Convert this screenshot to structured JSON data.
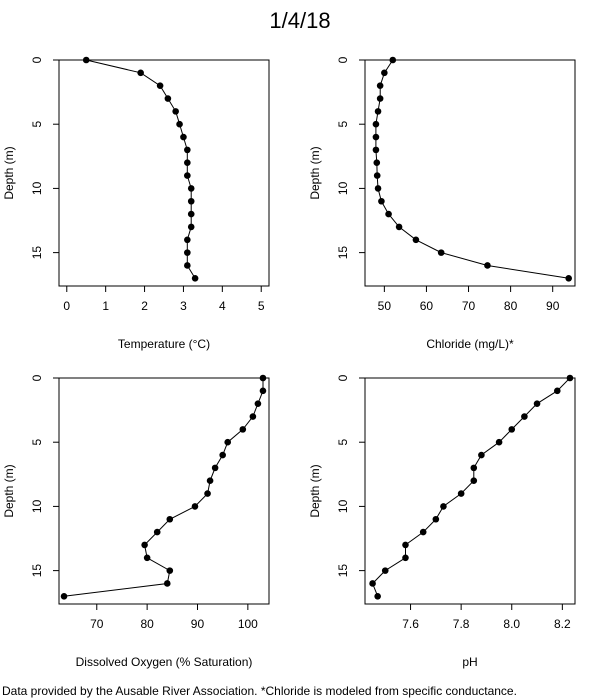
{
  "title": "1/4/18",
  "footnote": "Data provided by the Ausable River Association. *Chloride is modeled from specific conductance.",
  "colors": {
    "point": "#000000",
    "line": "#000000",
    "frame": "#000000",
    "background": "#ffffff"
  },
  "chart_data": [
    {
      "type": "line",
      "xlabel": "Temperature (°C)",
      "ylabel": "Depth (m)",
      "xlim": [
        -0.2,
        5.2
      ],
      "ylim_reversed": [
        0,
        17.6
      ],
      "xticks": [
        0,
        1,
        2,
        3,
        4,
        5
      ],
      "xtick_labels": [
        "0",
        "1",
        "2",
        "3",
        "4",
        "5"
      ],
      "yticks": [
        0,
        5,
        10,
        15
      ],
      "ytick_labels": [
        "0",
        "5",
        "10",
        "15"
      ],
      "points": [
        [
          0.5,
          0
        ],
        [
          1.9,
          1
        ],
        [
          2.4,
          2
        ],
        [
          2.6,
          3
        ],
        [
          2.8,
          4
        ],
        [
          2.9,
          5
        ],
        [
          3.0,
          6
        ],
        [
          3.1,
          7
        ],
        [
          3.1,
          8
        ],
        [
          3.1,
          9
        ],
        [
          3.2,
          10
        ],
        [
          3.2,
          11
        ],
        [
          3.2,
          12
        ],
        [
          3.2,
          13
        ],
        [
          3.1,
          14
        ],
        [
          3.1,
          15
        ],
        [
          3.1,
          16
        ],
        [
          3.3,
          17
        ]
      ]
    },
    {
      "type": "line",
      "xlabel": "Chloride (mg/L)*",
      "ylabel": "Depth (m)",
      "xlim": [
        45.4,
        95.3
      ],
      "ylim_reversed": [
        0,
        17.6
      ],
      "xticks": [
        50,
        60,
        70,
        80,
        90
      ],
      "xtick_labels": [
        "50",
        "60",
        "70",
        "80",
        "90"
      ],
      "yticks": [
        0,
        5,
        10,
        15
      ],
      "ytick_labels": [
        "0",
        "5",
        "10",
        "15"
      ],
      "points": [
        [
          52,
          0
        ],
        [
          50,
          1
        ],
        [
          49,
          2
        ],
        [
          49,
          3
        ],
        [
          48.5,
          4
        ],
        [
          48,
          5
        ],
        [
          48,
          6
        ],
        [
          48,
          7
        ],
        [
          48.2,
          8
        ],
        [
          48.3,
          9
        ],
        [
          48.5,
          10
        ],
        [
          49.3,
          11
        ],
        [
          51,
          12
        ],
        [
          53.5,
          13
        ],
        [
          57.5,
          14
        ],
        [
          63.5,
          15
        ],
        [
          74.5,
          16
        ],
        [
          93.8,
          17
        ]
      ]
    },
    {
      "type": "line",
      "xlabel": "Dissolved Oxygen (% Saturation)",
      "ylabel": "Depth (m)",
      "xlim": [
        62.5,
        104.2
      ],
      "ylim_reversed": [
        0,
        17.6
      ],
      "xticks": [
        70,
        80,
        90,
        100
      ],
      "xtick_labels": [
        "70",
        "80",
        "90",
        "100"
      ],
      "yticks": [
        0,
        5,
        10,
        15
      ],
      "ytick_labels": [
        "0",
        "5",
        "10",
        "15"
      ],
      "points": [
        [
          103,
          0
        ],
        [
          103,
          1
        ],
        [
          102,
          2
        ],
        [
          101,
          3
        ],
        [
          99,
          4
        ],
        [
          96,
          5
        ],
        [
          95,
          6
        ],
        [
          93.5,
          7
        ],
        [
          92.5,
          8
        ],
        [
          92,
          9
        ],
        [
          89.5,
          10
        ],
        [
          84.5,
          11
        ],
        [
          82,
          12
        ],
        [
          79.5,
          13
        ],
        [
          80,
          14
        ],
        [
          84.5,
          15
        ],
        [
          84,
          16
        ],
        [
          63.5,
          17
        ]
      ]
    },
    {
      "type": "line",
      "xlabel": "pH",
      "ylabel": "Depth (m)",
      "xlim": [
        7.42,
        8.25
      ],
      "ylim_reversed": [
        0,
        17.6
      ],
      "xticks": [
        7.6,
        7.8,
        8.0,
        8.2
      ],
      "xtick_labels": [
        "7.6",
        "7.8",
        "8.0",
        "8.2"
      ],
      "yticks": [
        0,
        5,
        10,
        15
      ],
      "ytick_labels": [
        "0",
        "5",
        "10",
        "15"
      ],
      "points": [
        [
          8.23,
          0
        ],
        [
          8.18,
          1
        ],
        [
          8.1,
          2
        ],
        [
          8.05,
          3
        ],
        [
          8.0,
          4
        ],
        [
          7.95,
          5
        ],
        [
          7.88,
          6
        ],
        [
          7.85,
          7
        ],
        [
          7.85,
          8
        ],
        [
          7.8,
          9
        ],
        [
          7.73,
          10
        ],
        [
          7.7,
          11
        ],
        [
          7.65,
          12
        ],
        [
          7.58,
          13
        ],
        [
          7.58,
          14
        ],
        [
          7.5,
          15
        ],
        [
          7.45,
          16
        ],
        [
          7.47,
          17
        ]
      ]
    }
  ]
}
